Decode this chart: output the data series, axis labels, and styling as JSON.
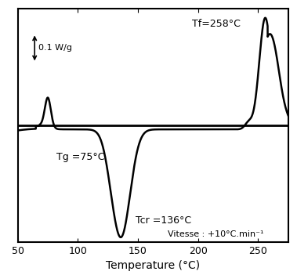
{
  "x_min": 50,
  "x_max": 275,
  "xlabel": "Temperature (°C)",
  "annotation_tg": "Tg =75°C",
  "annotation_tcr": "Tcr =136°C",
  "annotation_tf": "Tf=258°C",
  "annotation_vitesse": "Vitesse : +10°C.min⁻¹",
  "scale_label": "0.1 W/g",
  "background_color": "#ffffff",
  "line_color": "#000000",
  "figsize": [
    3.79,
    3.51
  ],
  "dpi": 100,
  "ylim": [
    -2.2,
    2.2
  ],
  "baseline_y": 0.0,
  "scale_arrow_half": 0.28,
  "scale_x": 64,
  "scale_y_center": 1.45
}
